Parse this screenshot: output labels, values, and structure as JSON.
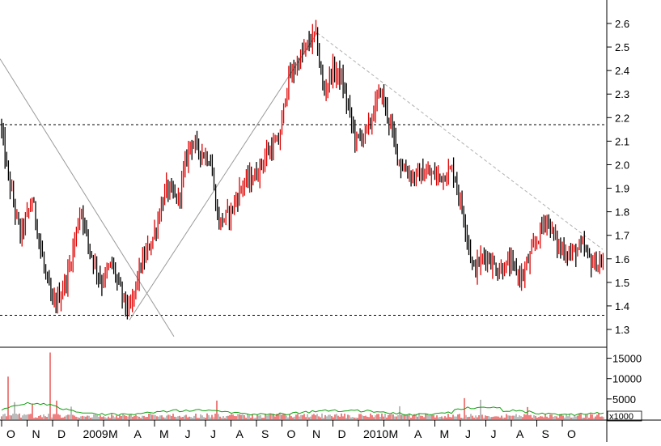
{
  "chart_data": [
    {
      "type": "candlestick",
      "title": "",
      "xlabel": "",
      "ylabel": "",
      "ylim": [
        1.21,
        2.68
      ],
      "y_ticks": [
        1.3,
        1.4,
        1.5,
        1.6,
        1.7,
        1.8,
        1.9,
        2.0,
        2.1,
        2.2,
        2.3,
        2.4,
        2.5,
        2.6
      ],
      "x_months": [
        "O",
        "N",
        "D",
        "2009",
        "M",
        "A",
        "M",
        "J",
        "J",
        "A",
        "S",
        "O",
        "N",
        "D",
        "2010",
        "M",
        "A",
        "M",
        "J",
        "J",
        "A",
        "S",
        "O"
      ],
      "price_path": [
        [
          0,
          2.18
        ],
        [
          10,
          1.95
        ],
        [
          25,
          1.7
        ],
        [
          40,
          1.85
        ],
        [
          55,
          1.55
        ],
        [
          65,
          1.4
        ],
        [
          75,
          1.45
        ],
        [
          85,
          1.55
        ],
        [
          100,
          1.82
        ],
        [
          110,
          1.65
        ],
        [
          125,
          1.5
        ],
        [
          138,
          1.58
        ],
        [
          150,
          1.45
        ],
        [
          160,
          1.37
        ],
        [
          172,
          1.55
        ],
        [
          190,
          1.7
        ],
        [
          205,
          1.9
        ],
        [
          220,
          1.85
        ],
        [
          235,
          2.1
        ],
        [
          250,
          2.05
        ],
        [
          260,
          2.02
        ],
        [
          270,
          1.75
        ],
        [
          285,
          1.8
        ],
        [
          300,
          1.92
        ],
        [
          315,
          1.95
        ],
        [
          330,
          2.05
        ],
        [
          345,
          2.1
        ],
        [
          355,
          2.35
        ],
        [
          375,
          2.48
        ],
        [
          390,
          2.56
        ],
        [
          400,
          2.3
        ],
        [
          410,
          2.4
        ],
        [
          420,
          2.38
        ],
        [
          430,
          2.25
        ],
        [
          440,
          2.1
        ],
        [
          455,
          2.15
        ],
        [
          470,
          2.32
        ],
        [
          480,
          2.2
        ],
        [
          495,
          2.0
        ],
        [
          510,
          1.95
        ],
        [
          525,
          1.96
        ],
        [
          545,
          1.95
        ],
        [
          560,
          1.98
        ],
        [
          575,
          1.75
        ],
        [
          585,
          1.55
        ],
        [
          600,
          1.62
        ],
        [
          615,
          1.55
        ],
        [
          630,
          1.58
        ],
        [
          645,
          1.52
        ],
        [
          660,
          1.65
        ],
        [
          675,
          1.78
        ],
        [
          690,
          1.65
        ],
        [
          705,
          1.62
        ],
        [
          720,
          1.65
        ],
        [
          732,
          1.58
        ],
        [
          745,
          1.58
        ]
      ],
      "trendlines": [
        {
          "from": [
            0,
            2.45
          ],
          "to": [
            215,
            1.27
          ]
        },
        {
          "from": [
            160,
            1.34
          ],
          "to": [
            392,
            2.56
          ]
        }
      ],
      "resistance_line": {
        "from": [
          392,
          2.56
        ],
        "to": [
          745,
          1.64
        ]
      },
      "horizontal_levels": [
        2.17,
        1.36
      ],
      "colors": {
        "up": "#e00000",
        "down": "#000000",
        "volume_avg": "#10a010",
        "grid_dash": "#000000",
        "trendline": "#9a9a9a",
        "resistance": "#b0b0b0"
      }
    },
    {
      "type": "bar",
      "title": "",
      "ylabel": "",
      "y_ticks": [
        5000,
        10000,
        15000
      ],
      "ylim": [
        0,
        17500
      ],
      "units_label": "x1000",
      "volume_spikes": [
        [
          11,
          10500
        ],
        [
          18,
          4200
        ],
        [
          40,
          3800
        ],
        [
          62,
          16400
        ],
        [
          70,
          4600
        ],
        [
          88,
          3100
        ],
        [
          268,
          4600
        ],
        [
          495,
          3200
        ],
        [
          575,
          5200
        ],
        [
          595,
          4800
        ],
        [
          652,
          3000
        ]
      ],
      "typical_volume": 800
    }
  ]
}
